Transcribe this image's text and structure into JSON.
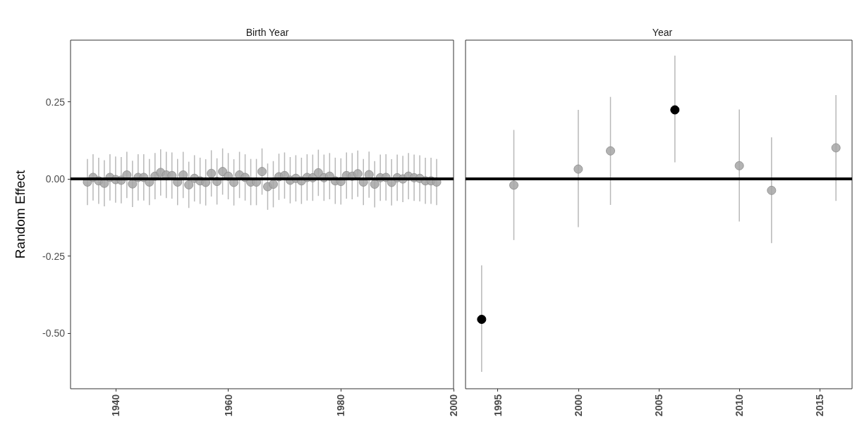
{
  "chart_data": [
    {
      "type": "scatter",
      "title": "Birth Year",
      "ylabel": "Random Effect",
      "xlim": [
        1932,
        2000
      ],
      "xticks": [
        1940,
        1960,
        1980,
        2000
      ],
      "ylim": [
        -0.68,
        0.45
      ],
      "yticks": [
        {
          "value": -0.5,
          "label": "-0.50"
        },
        {
          "value": -0.25,
          "label": "-0.25"
        },
        {
          "value": 0,
          "label": "0.00"
        },
        {
          "value": 0.25,
          "label": "0.25"
        }
      ],
      "grid": false,
      "marker": "circle",
      "ref_lines": [
        {
          "axis": "y",
          "value": 0,
          "color": "#000000"
        }
      ],
      "x": [
        1935,
        1936,
        1937,
        1938,
        1939,
        1940,
        1941,
        1942,
        1943,
        1944,
        1945,
        1946,
        1947,
        1948,
        1949,
        1950,
        1951,
        1952,
        1953,
        1954,
        1955,
        1956,
        1957,
        1958,
        1959,
        1960,
        1961,
        1962,
        1963,
        1964,
        1965,
        1966,
        1967,
        1968,
        1969,
        1970,
        1971,
        1972,
        1973,
        1974,
        1975,
        1976,
        1977,
        1978,
        1979,
        1980,
        1981,
        1982,
        1983,
        1984,
        1985,
        1986,
        1987,
        1988,
        1989,
        1990,
        1991,
        1992,
        1993,
        1994,
        1995,
        1996,
        1997
      ],
      "series": [
        {
          "color": "#a6a6a6",
          "values": [
            -0.01,
            0.005,
            -0.006,
            -0.014,
            0.005,
            -0.002,
            -0.004,
            0.013,
            -0.016,
            0.005,
            0.005,
            -0.01,
            0.009,
            0.021,
            0.013,
            0.011,
            -0.01,
            0.013,
            -0.019,
            0.002,
            -0.006,
            -0.011,
            0.018,
            -0.008,
            0.024,
            0.009,
            -0.011,
            0.013,
            0.005,
            -0.01,
            -0.01,
            0.024,
            -0.025,
            -0.017,
            0.007,
            0.011,
            -0.004,
            0.002,
            -0.006,
            0.005,
            0.004,
            0.02,
            0.004,
            0.009,
            -0.006,
            -0.008,
            0.011,
            0.009,
            0.017,
            -0.01,
            0.014,
            -0.017,
            0.004,
            0.005,
            -0.011,
            0.004,
            0,
            0.009,
            0.004,
            0.002,
            -0.006,
            -0.006,
            -0.01
          ],
          "errors": [
            0.075,
            0.075,
            0.075,
            0.075,
            0.075,
            0.075,
            0.075,
            0.075,
            0.075,
            0.075,
            0.075,
            0.075,
            0.075,
            0.075,
            0.075,
            0.075,
            0.075,
            0.075,
            0.075,
            0.075,
            0.075,
            0.075,
            0.075,
            0.075,
            0.075,
            0.075,
            0.075,
            0.075,
            0.075,
            0.075,
            0.075,
            0.075,
            0.075,
            0.075,
            0.075,
            0.075,
            0.075,
            0.075,
            0.075,
            0.075,
            0.075,
            0.075,
            0.075,
            0.075,
            0.075,
            0.075,
            0.075,
            0.075,
            0.075,
            0.075,
            0.075,
            0.075,
            0.075,
            0.075,
            0.075,
            0.075,
            0.075,
            0.075,
            0.075,
            0.075,
            0.075,
            0.075,
            0.075
          ]
        }
      ]
    },
    {
      "type": "scatter",
      "title": "Year",
      "xlim": [
        1993,
        2017
      ],
      "xticks": [
        1995,
        2000,
        2005,
        2010,
        2015
      ],
      "ylim": [
        -0.68,
        0.45
      ],
      "tick_labels": "x",
      "grid": false,
      "marker": "circle",
      "ref_lines": [
        {
          "axis": "y",
          "value": 0,
          "color": "#000000"
        }
      ],
      "x": [
        1994,
        1996,
        2000,
        2002,
        2006,
        2010,
        2012,
        2016
      ],
      "series": [
        {
          "colors": [
            "#000000",
            "#a6a6a6",
            "#a6a6a6",
            "#a6a6a6",
            "#000000",
            "#a6a6a6",
            "#a6a6a6",
            "#a6a6a6"
          ],
          "values": [
            -0.455,
            -0.02,
            0.032,
            0.091,
            0.224,
            0.043,
            -0.037,
            0.101
          ],
          "errors": [
            [
              -0.625,
              -0.28
            ],
            [
              -0.198,
              0.159
            ],
            [
              -0.156,
              0.224
            ],
            [
              -0.084,
              0.266
            ],
            [
              0.054,
              0.4
            ],
            [
              -0.138,
              0.225
            ],
            [
              -0.208,
              0.135
            ],
            [
              -0.071,
              0.272
            ]
          ]
        }
      ]
    }
  ]
}
